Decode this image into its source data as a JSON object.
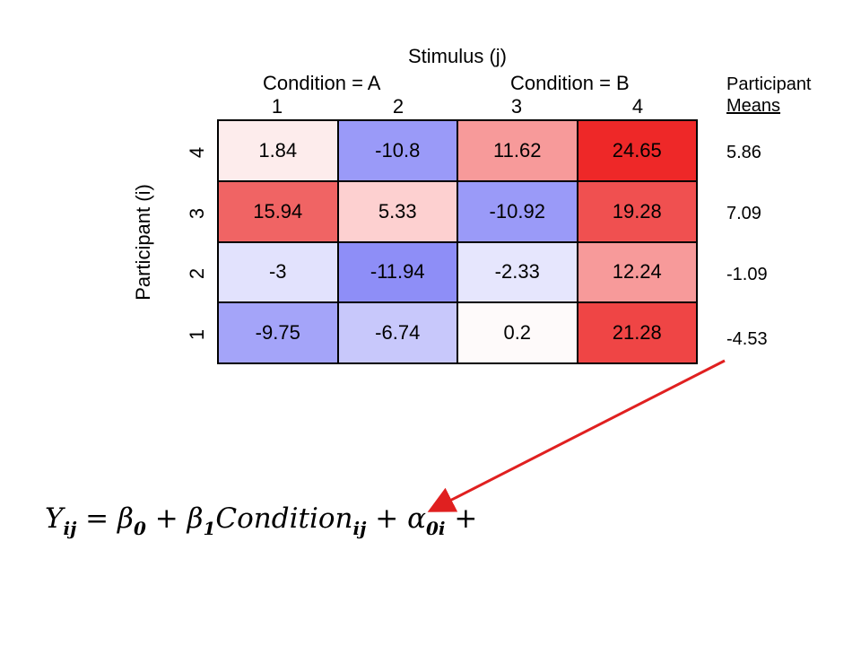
{
  "heatmap": {
    "title": "Stimulus (j)",
    "conditions": [
      "Condition = A",
      "Condition = B"
    ],
    "columns": [
      "1",
      "2",
      "3",
      "4"
    ],
    "ylabel": "Participant (i)",
    "rows": [
      {
        "label": "4",
        "values": [
          "1.84",
          "-10.8",
          "11.62",
          "24.65"
        ],
        "colors": [
          "#fdecec",
          "#9a9af8",
          "#f79a9a",
          "#ee2828"
        ]
      },
      {
        "label": "3",
        "values": [
          "15.94",
          "5.33",
          "-10.92",
          "19.28"
        ],
        "colors": [
          "#f06464",
          "#fdd0d0",
          "#9a9af8",
          "#f05050"
        ]
      },
      {
        "label": "2",
        "values": [
          "-3",
          "-11.94",
          "-2.33",
          "12.24"
        ],
        "colors": [
          "#e2e2fd",
          "#8e8ef7",
          "#e6e6fd",
          "#f79a9a"
        ]
      },
      {
        "label": "1",
        "values": [
          "-9.75",
          "-6.74",
          "0.2",
          "21.28"
        ],
        "colors": [
          "#a4a4f9",
          "#c8c8fb",
          "#fefafa",
          "#ef4545"
        ]
      }
    ]
  },
  "means": {
    "header_line1": "Participant",
    "header_line2": "Means",
    "values": [
      "5.86",
      "7.09",
      "-1.09",
      "-4.53"
    ]
  },
  "equation": {
    "Y": "Y",
    "Y_sub": "ij",
    "eq": "=",
    "beta0": "β",
    "beta0_sub": "0",
    "plus1": "+",
    "beta1": "β",
    "beta1_sub": "1",
    "condition": "Condition",
    "condition_sub": "ij",
    "plus2": "+",
    "alpha": "α",
    "alpha_sub": "0i",
    "plus3": "+"
  },
  "arrow_color": "#e02020"
}
